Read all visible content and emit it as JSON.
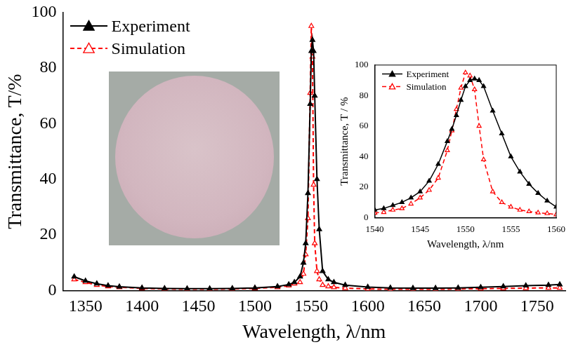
{
  "chart_data": [
    {
      "type": "line",
      "x": [
        1340,
        1350,
        1360,
        1370,
        1380,
        1400,
        1420,
        1440,
        1460,
        1480,
        1500,
        1520,
        1530,
        1535,
        1540,
        1543,
        1545,
        1547,
        1549,
        1550,
        1551,
        1552,
        1553,
        1555,
        1557,
        1560,
        1565,
        1570,
        1580,
        1600,
        1620,
        1640,
        1660,
        1680,
        1700,
        1720,
        1740,
        1760,
        1770
      ],
      "series": [
        {
          "name": "Experiment",
          "color": "#000000",
          "marker": "triangle",
          "line_style": "solid",
          "values": [
            5,
            3.5,
            2.5,
            1.8,
            1.4,
            1.0,
            0.8,
            0.7,
            0.7,
            0.8,
            1.0,
            1.5,
            2.2,
            3,
            5,
            10,
            17,
            35,
            67,
            86,
            90,
            86,
            70,
            40,
            22,
            7,
            4,
            3,
            2,
            1.3,
            1,
            0.9,
            0.9,
            1,
            1.2,
            1.5,
            1.8,
            2,
            2.2
          ]
        },
        {
          "name": "Simulation",
          "color": "#ff0000",
          "marker": "open-triangle",
          "line_style": "dashed",
          "values": [
            4,
            3,
            2,
            1.5,
            1.2,
            0.8,
            0.6,
            0.5,
            0.5,
            0.6,
            0.8,
            1.2,
            1.8,
            2.5,
            3,
            6,
            13,
            26,
            71,
            95,
            84,
            38,
            17,
            7,
            4,
            2,
            1.5,
            1.2,
            0.9,
            0.6,
            0.5,
            0.5,
            0.5,
            0.6,
            0.7,
            0.8,
            0.9,
            1,
            1
          ]
        }
      ],
      "x_label": "Wavelength, λ/nm",
      "y_label": "Transmittance, T/%",
      "xlim": [
        1330,
        1775
      ],
      "ylim": [
        0,
        100
      ],
      "xticks": [
        1350,
        1400,
        1450,
        1500,
        1550,
        1600,
        1650,
        1700,
        1750
      ],
      "yticks": [
        0,
        20,
        40,
        60,
        80,
        100
      ],
      "grid": false,
      "legend": "upper left"
    },
    {
      "type": "line",
      "x": [
        1540,
        1541,
        1542,
        1543,
        1544,
        1545,
        1546,
        1547,
        1548,
        1548.5,
        1549,
        1549.5,
        1550,
        1550.5,
        1551,
        1551.5,
        1552,
        1553,
        1554,
        1555,
        1556,
        1557,
        1558,
        1559,
        1560
      ],
      "series": [
        {
          "name": "Experiment",
          "color": "#000000",
          "marker": "triangle",
          "line_style": "solid",
          "values": [
            5,
            6,
            8,
            10,
            13,
            17,
            24,
            35,
            50,
            58,
            67,
            77,
            86,
            90,
            91,
            90,
            86,
            70,
            55,
            40,
            30,
            22,
            16,
            11,
            7
          ]
        },
        {
          "name": "Simulation",
          "color": "#ff0000",
          "marker": "open-triangle",
          "line_style": "dashed",
          "values": [
            3,
            3.5,
            5,
            6,
            9,
            13,
            18,
            26,
            44,
            57,
            71,
            85,
            95,
            93,
            84,
            60,
            38,
            17,
            10,
            7,
            5,
            4,
            3.2,
            2.7,
            2
          ]
        }
      ],
      "x_label": "Wavelength, λ/nm",
      "y_label": "Transmittance, T / %",
      "xlim": [
        1540,
        1560
      ],
      "ylim": [
        0,
        100
      ],
      "xticks": [
        1540,
        1545,
        1550,
        1555,
        1560
      ],
      "yticks": [
        0,
        20,
        40,
        60,
        80,
        100
      ],
      "grid": false,
      "legend": "upper left"
    }
  ]
}
